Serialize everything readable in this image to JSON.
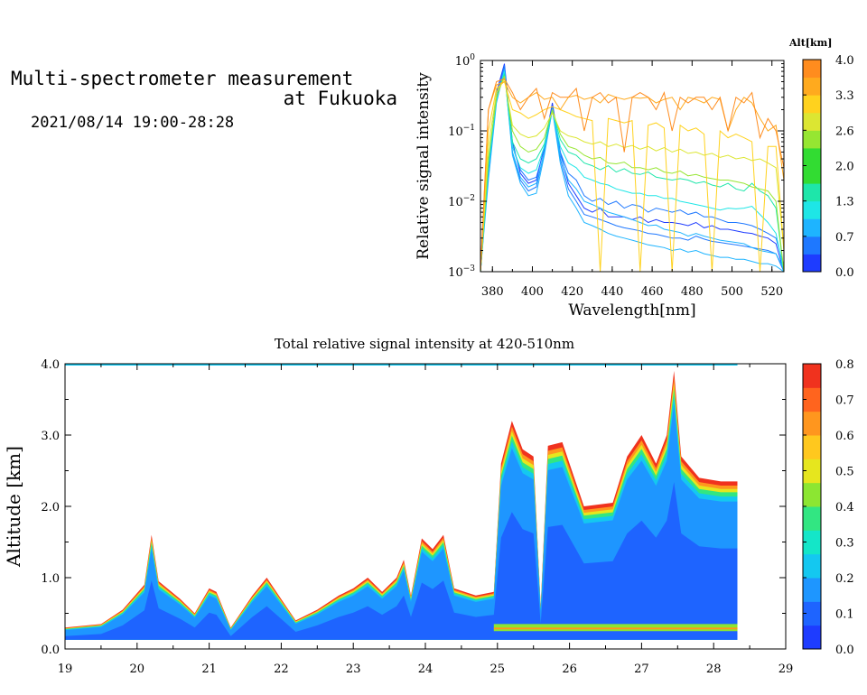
{
  "header": {
    "title_line1": "Multi-spectrometer measurement",
    "title_line2": "at Fukuoka",
    "datetime": "2021/08/14 19:00-28:28"
  },
  "colors": {
    "alt_scale": [
      "#1e3cff",
      "#1e78ff",
      "#1eb4ff",
      "#1ee6e6",
      "#1ee6aa",
      "#32dc32",
      "#96e632",
      "#dce632",
      "#ffd21e",
      "#ffaa1e",
      "#ff8c1e"
    ],
    "intensity_scale": [
      "#1e3cff",
      "#1e64ff",
      "#1e96ff",
      "#14c8f0",
      "#14e6c8",
      "#32e682",
      "#8ce632",
      "#e6e61e",
      "#ffc81e",
      "#ff961e",
      "#ff641e",
      "#f0321e"
    ]
  },
  "chart_data": [
    {
      "type": "line",
      "title": "",
      "xlabel": "Wavelength[nm]",
      "ylabel": "Relative signal intensity",
      "xlim": [
        374,
        526
      ],
      "ylim": [
        0.001,
        1
      ],
      "yscale": "log",
      "x_ticks": [
        "380",
        "400",
        "420",
        "440",
        "460",
        "480",
        "500",
        "520"
      ],
      "y_tick_labels": [
        {
          "base": "10",
          "exp": "0"
        },
        {
          "base": "10",
          "exp": "−1"
        },
        {
          "base": "10",
          "exp": "−2"
        },
        {
          "base": "10",
          "exp": "−3"
        }
      ],
      "colorbar": {
        "title": "Alt[km]",
        "ticks": [
          "4.0",
          "3.3",
          "2.6",
          "2.0",
          "1.3",
          "0.7",
          "0.0"
        ],
        "range": [
          0,
          4
        ]
      },
      "x": [
        374,
        378,
        382,
        386,
        390,
        394,
        398,
        402,
        406,
        410,
        414,
        418,
        422,
        426,
        430,
        434,
        438,
        442,
        446,
        450,
        454,
        458,
        462,
        466,
        470,
        474,
        478,
        482,
        486,
        490,
        494,
        498,
        502,
        506,
        510,
        514,
        518,
        522,
        526
      ],
      "series": [
        {
          "alt": 0.0,
          "values": [
            0.001,
            0.03,
            0.35,
            0.9,
            0.07,
            0.025,
            0.018,
            0.02,
            0.06,
            0.25,
            0.05,
            0.018,
            0.012,
            0.008,
            0.007,
            0.008,
            0.006,
            0.006,
            0.006,
            0.0055,
            0.006,
            0.005,
            0.0055,
            0.005,
            0.005,
            0.0048,
            0.0045,
            0.005,
            0.0042,
            0.0045,
            0.004,
            0.004,
            0.0038,
            0.0036,
            0.0035,
            0.0032,
            0.003,
            0.0025,
            0.001
          ]
        },
        {
          "alt": 0.2,
          "values": [
            0.001,
            0.03,
            0.3,
            0.85,
            0.06,
            0.028,
            0.02,
            0.022,
            0.055,
            0.22,
            0.05,
            0.025,
            0.02,
            0.012,
            0.01,
            0.011,
            0.009,
            0.01,
            0.008,
            0.009,
            0.0085,
            0.007,
            0.008,
            0.0075,
            0.007,
            0.0075,
            0.0065,
            0.007,
            0.006,
            0.006,
            0.0055,
            0.005,
            0.005,
            0.0048,
            0.0045,
            0.004,
            0.0035,
            0.003,
            0.0012
          ]
        },
        {
          "alt": 0.4,
          "values": [
            0.001,
            0.025,
            0.28,
            0.8,
            0.05,
            0.02,
            0.014,
            0.016,
            0.05,
            0.2,
            0.04,
            0.015,
            0.01,
            0.0065,
            0.006,
            0.0055,
            0.005,
            0.0045,
            0.0042,
            0.004,
            0.0038,
            0.0035,
            0.0034,
            0.0032,
            0.003,
            0.003,
            0.0028,
            0.0032,
            0.0029,
            0.0027,
            0.0026,
            0.0025,
            0.0024,
            0.0023,
            0.0022,
            0.0021,
            0.002,
            0.0018,
            0.001
          ]
        },
        {
          "alt": 0.6,
          "values": [
            0.001,
            0.02,
            0.25,
            0.75,
            0.045,
            0.018,
            0.012,
            0.013,
            0.045,
            0.2,
            0.035,
            0.012,
            0.008,
            0.005,
            0.0045,
            0.004,
            0.0035,
            0.0032,
            0.003,
            0.0028,
            0.0026,
            0.0024,
            0.0023,
            0.0022,
            0.002,
            0.0021,
            0.0019,
            0.002,
            0.0018,
            0.0017,
            0.0016,
            0.0016,
            0.0015,
            0.0015,
            0.0014,
            0.0013,
            0.0013,
            0.0012,
            0.001
          ]
        },
        {
          "alt": 0.8,
          "values": [
            0.001,
            0.03,
            0.26,
            0.72,
            0.05,
            0.022,
            0.016,
            0.018,
            0.048,
            0.21,
            0.045,
            0.02,
            0.015,
            0.01,
            0.009,
            0.008,
            0.007,
            0.0065,
            0.006,
            0.0055,
            0.005,
            0.0045,
            0.0046,
            0.004,
            0.0038,
            0.0036,
            0.0032,
            0.0035,
            0.0032,
            0.003,
            0.0028,
            0.0027,
            0.0026,
            0.0025,
            0.0022,
            0.002,
            0.0019,
            0.0018,
            0.0011
          ]
        },
        {
          "alt": 1.2,
          "values": [
            0.001,
            0.03,
            0.28,
            0.7,
            0.06,
            0.03,
            0.025,
            0.028,
            0.06,
            0.2,
            0.06,
            0.035,
            0.03,
            0.022,
            0.02,
            0.018,
            0.017,
            0.015,
            0.014,
            0.013,
            0.013,
            0.012,
            0.012,
            0.011,
            0.011,
            0.01,
            0.0095,
            0.009,
            0.0085,
            0.008,
            0.0075,
            0.008,
            0.0078,
            0.008,
            0.0085,
            0.0065,
            0.005,
            0.0035,
            0.001
          ]
        },
        {
          "alt": 1.7,
          "values": [
            0.001,
            0.035,
            0.3,
            0.65,
            0.07,
            0.04,
            0.035,
            0.04,
            0.065,
            0.2,
            0.075,
            0.05,
            0.045,
            0.035,
            0.032,
            0.028,
            0.032,
            0.026,
            0.029,
            0.025,
            0.024,
            0.026,
            0.022,
            0.021,
            0.02,
            0.021,
            0.02,
            0.018,
            0.019,
            0.017,
            0.016,
            0.018,
            0.015,
            0.014,
            0.018,
            0.014,
            0.012,
            0.008,
            0.001
          ]
        },
        {
          "alt": 2.2,
          "values": [
            0.001,
            0.04,
            0.3,
            0.6,
            0.1,
            0.06,
            0.05,
            0.055,
            0.08,
            0.2,
            0.09,
            0.06,
            0.055,
            0.045,
            0.04,
            0.042,
            0.035,
            0.034,
            0.036,
            0.03,
            0.03,
            0.028,
            0.03,
            0.026,
            0.025,
            0.027,
            0.023,
            0.024,
            0.022,
            0.021,
            0.02,
            0.02,
            0.019,
            0.018,
            0.016,
            0.015,
            0.014,
            0.01,
            0.001
          ]
        },
        {
          "alt": 2.6,
          "values": [
            0.001,
            0.06,
            0.35,
            0.55,
            0.12,
            0.09,
            0.08,
            0.085,
            0.11,
            0.18,
            0.1,
            0.085,
            0.08,
            0.07,
            0.065,
            0.07,
            0.06,
            0.065,
            0.058,
            0.062,
            0.055,
            0.06,
            0.052,
            0.058,
            0.05,
            0.055,
            0.048,
            0.05,
            0.045,
            0.048,
            0.042,
            0.045,
            0.04,
            0.042,
            0.038,
            0.04,
            0.035,
            0.03,
            0.002
          ]
        },
        {
          "alt": 3.0,
          "values": [
            0.001,
            0.1,
            0.4,
            0.5,
            0.2,
            0.18,
            0.15,
            0.17,
            0.2,
            0.22,
            0.2,
            0.18,
            0.16,
            0.15,
            0.14,
            0.001,
            0.15,
            0.14,
            0.13,
            0.14,
            0.001,
            0.12,
            0.13,
            0.11,
            0.001,
            0.12,
            0.1,
            0.11,
            0.09,
            0.001,
            0.1,
            0.08,
            0.09,
            0.08,
            0.07,
            0.001,
            0.06,
            0.06,
            0.002
          ]
        },
        {
          "alt": 3.5,
          "values": [
            0.001,
            0.2,
            0.45,
            0.5,
            0.3,
            0.25,
            0.3,
            0.35,
            0.28,
            0.3,
            0.2,
            0.3,
            0.32,
            0.28,
            0.3,
            0.25,
            0.33,
            0.3,
            0.28,
            0.3,
            0.29,
            0.3,
            0.25,
            0.28,
            0.3,
            0.2,
            0.3,
            0.28,
            0.25,
            0.3,
            0.28,
            0.1,
            0.2,
            0.3,
            0.25,
            0.15,
            0.1,
            0.12,
            0.02
          ]
        },
        {
          "alt": 4.0,
          "values": [
            0.001,
            0.2,
            0.5,
            0.55,
            0.35,
            0.2,
            0.3,
            0.4,
            0.15,
            0.35,
            0.3,
            0.3,
            0.4,
            0.1,
            0.3,
            0.35,
            0.25,
            0.3,
            0.05,
            0.3,
            0.35,
            0.3,
            0.2,
            0.35,
            0.1,
            0.3,
            0.25,
            0.3,
            0.3,
            0.2,
            0.3,
            0.1,
            0.3,
            0.25,
            0.35,
            0.08,
            0.15,
            0.1,
            0.03
          ]
        }
      ]
    },
    {
      "type": "heatmap",
      "title": "Total relative signal intensity at 420-510nm",
      "xlabel": "",
      "ylabel": "Altitude [km]",
      "xlim": [
        19,
        29
      ],
      "ylim": [
        0,
        4
      ],
      "x_ticks": [
        "19",
        "20",
        "21",
        "22",
        "23",
        "24",
        "25",
        "26",
        "27",
        "28",
        "29"
      ],
      "y_ticks": [
        "4.0",
        "3.0",
        "2.0",
        "1.0",
        "0.0"
      ],
      "colorbar": {
        "title": "",
        "ticks": [
          "0.8",
          "0.7",
          "0.6",
          "0.5",
          "0.4",
          "0.3",
          "0.2",
          "0.1",
          "0.0"
        ],
        "range": [
          0,
          0.8
        ]
      },
      "data_end_time": 28.33,
      "layer_top_km": [
        [
          19.0,
          0.3
        ],
        [
          19.5,
          0.35
        ],
        [
          19.8,
          0.55
        ],
        [
          20.1,
          0.9
        ],
        [
          20.2,
          1.6
        ],
        [
          20.3,
          0.95
        ],
        [
          20.6,
          0.7
        ],
        [
          20.8,
          0.5
        ],
        [
          21.0,
          0.85
        ],
        [
          21.1,
          0.8
        ],
        [
          21.3,
          0.3
        ],
        [
          21.6,
          0.75
        ],
        [
          21.8,
          1.0
        ],
        [
          22.0,
          0.7
        ],
        [
          22.2,
          0.4
        ],
        [
          22.5,
          0.55
        ],
        [
          22.8,
          0.75
        ],
        [
          23.0,
          0.85
        ],
        [
          23.2,
          1.0
        ],
        [
          23.4,
          0.8
        ],
        [
          23.6,
          1.0
        ],
        [
          23.7,
          1.25
        ],
        [
          23.8,
          0.75
        ],
        [
          23.95,
          1.55
        ],
        [
          24.1,
          1.4
        ],
        [
          24.25,
          1.6
        ],
        [
          24.4,
          0.85
        ],
        [
          24.7,
          0.75
        ],
        [
          24.95,
          0.8
        ],
        [
          25.05,
          2.6
        ],
        [
          25.2,
          3.2
        ],
        [
          25.35,
          2.8
        ],
        [
          25.5,
          2.7
        ],
        [
          25.6,
          0.6
        ],
        [
          25.7,
          2.85
        ],
        [
          25.9,
          2.9
        ],
        [
          26.2,
          2.0
        ],
        [
          26.6,
          2.05
        ],
        [
          26.8,
          2.7
        ],
        [
          27.0,
          3.0
        ],
        [
          27.2,
          2.6
        ],
        [
          27.35,
          3.0
        ],
        [
          27.45,
          3.9
        ],
        [
          27.55,
          2.7
        ],
        [
          27.8,
          2.4
        ],
        [
          28.1,
          2.35
        ],
        [
          28.33,
          2.35
        ]
      ],
      "surface_band_km": [
        0.25,
        0.35
      ]
    }
  ]
}
